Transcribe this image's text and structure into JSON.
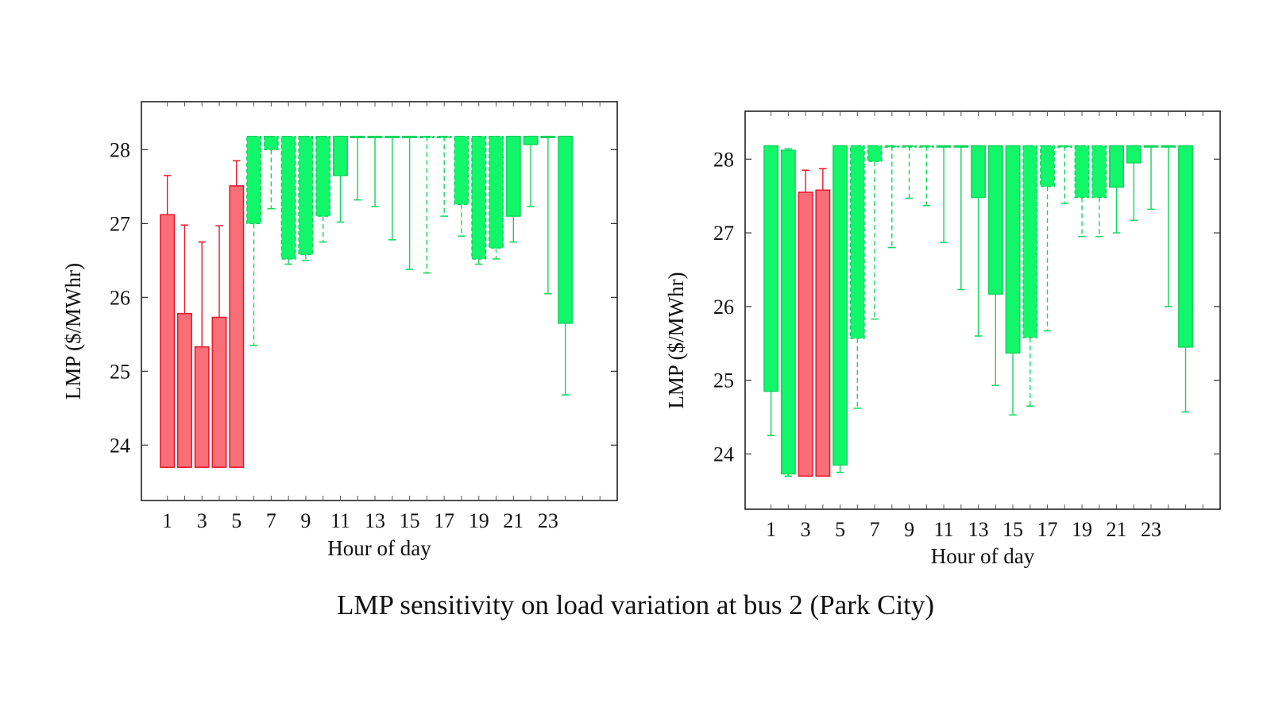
{
  "figure": {
    "caption": "LMP sensitivity on load variation at bus 2 (Park City)"
  },
  "colors": {
    "red_fill": "#f96f77",
    "red_stroke": "#e8162c",
    "green_fill": "#12f76a",
    "green_stroke": "#10d65c",
    "frame": "#222222"
  },
  "chart_data": [
    {
      "type": "bar",
      "subtype": "floating-bar-with-whiskers",
      "xlabel": "Hour of day",
      "ylabel": "LMP ($/MWhr)",
      "ylim": [
        23.25,
        28.65
      ],
      "yticks": [
        24,
        25,
        26,
        27,
        28
      ],
      "xticks": [
        1,
        3,
        5,
        7,
        9,
        11,
        13,
        15,
        17,
        19,
        21,
        23
      ],
      "xlim": [
        -0.5,
        27
      ],
      "grid": false,
      "cap": 28.18,
      "bars": [
        {
          "hour": 1,
          "low": 23.7,
          "high": 27.12,
          "whisker_low": 23.7,
          "whisker_high": 27.65,
          "color": "red",
          "style": "solid"
        },
        {
          "hour": 2,
          "low": 23.7,
          "high": 25.78,
          "whisker_low": 23.7,
          "whisker_high": 26.98,
          "color": "red",
          "style": "solid"
        },
        {
          "hour": 3,
          "low": 23.7,
          "high": 25.33,
          "whisker_low": 23.7,
          "whisker_high": 26.75,
          "color": "red",
          "style": "solid"
        },
        {
          "hour": 4,
          "low": 23.7,
          "high": 25.73,
          "whisker_low": 23.7,
          "whisker_high": 26.97,
          "color": "red",
          "style": "solid"
        },
        {
          "hour": 5,
          "low": 23.7,
          "high": 27.51,
          "whisker_low": 23.7,
          "whisker_high": 27.85,
          "color": "red",
          "style": "solid"
        },
        {
          "hour": 6,
          "low": 27.0,
          "high": 28.18,
          "whisker_low": 25.35,
          "whisker_high": 28.18,
          "color": "green",
          "style": "dashed"
        },
        {
          "hour": 7,
          "low": 28.0,
          "high": 28.18,
          "whisker_low": 27.2,
          "whisker_high": 28.18,
          "color": "green",
          "style": "dashed"
        },
        {
          "hour": 8,
          "low": 26.52,
          "high": 28.18,
          "whisker_low": 26.45,
          "whisker_high": 28.18,
          "color": "green",
          "style": "dashed"
        },
        {
          "hour": 9,
          "low": 26.58,
          "high": 28.18,
          "whisker_low": 26.5,
          "whisker_high": 28.18,
          "color": "green",
          "style": "dashed"
        },
        {
          "hour": 10,
          "low": 27.1,
          "high": 28.18,
          "whisker_low": 26.75,
          "whisker_high": 28.18,
          "color": "green",
          "style": "dashed"
        },
        {
          "hour": 11,
          "low": 27.65,
          "high": 28.18,
          "whisker_low": 27.02,
          "whisker_high": 28.18,
          "color": "green",
          "style": "solid"
        },
        {
          "hour": 12,
          "low": 28.18,
          "high": 28.18,
          "whisker_low": 27.32,
          "whisker_high": 28.18,
          "color": "green",
          "style": "solid"
        },
        {
          "hour": 13,
          "low": 28.18,
          "high": 28.18,
          "whisker_low": 27.23,
          "whisker_high": 28.18,
          "color": "green",
          "style": "solid"
        },
        {
          "hour": 14,
          "low": 28.18,
          "high": 28.18,
          "whisker_low": 26.78,
          "whisker_high": 28.18,
          "color": "green",
          "style": "solid"
        },
        {
          "hour": 15,
          "low": 28.18,
          "high": 28.18,
          "whisker_low": 26.38,
          "whisker_high": 28.18,
          "color": "green",
          "style": "solid"
        },
        {
          "hour": 16,
          "low": 28.18,
          "high": 28.18,
          "whisker_low": 26.33,
          "whisker_high": 28.18,
          "color": "green",
          "style": "dashed"
        },
        {
          "hour": 17,
          "low": 28.18,
          "high": 28.18,
          "whisker_low": 27.1,
          "whisker_high": 28.18,
          "color": "green",
          "style": "dashed"
        },
        {
          "hour": 18,
          "low": 27.26,
          "high": 28.18,
          "whisker_low": 26.83,
          "whisker_high": 28.18,
          "color": "green",
          "style": "dashed"
        },
        {
          "hour": 19,
          "low": 26.52,
          "high": 28.18,
          "whisker_low": 26.45,
          "whisker_high": 28.18,
          "color": "green",
          "style": "dashed"
        },
        {
          "hour": 20,
          "low": 26.67,
          "high": 28.18,
          "whisker_low": 26.52,
          "whisker_high": 28.18,
          "color": "green",
          "style": "dashed"
        },
        {
          "hour": 21,
          "low": 27.1,
          "high": 28.18,
          "whisker_low": 26.75,
          "whisker_high": 28.18,
          "color": "green",
          "style": "solid"
        },
        {
          "hour": 22,
          "low": 28.07,
          "high": 28.18,
          "whisker_low": 27.23,
          "whisker_high": 28.18,
          "color": "green",
          "style": "solid"
        },
        {
          "hour": 23,
          "low": 28.18,
          "high": 28.18,
          "whisker_low": 26.05,
          "whisker_high": 28.18,
          "color": "green",
          "style": "solid"
        },
        {
          "hour": 24,
          "low": 25.65,
          "high": 28.18,
          "whisker_low": 24.68,
          "whisker_high": 28.18,
          "color": "green",
          "style": "solid"
        }
      ]
    },
    {
      "type": "bar",
      "subtype": "floating-bar-with-whiskers",
      "xlabel": "Hour of day",
      "ylabel": "LMP ($/MWhr)",
      "ylim": [
        23.25,
        28.65
      ],
      "yticks": [
        24,
        25,
        26,
        27,
        28
      ],
      "xticks": [
        1,
        3,
        5,
        7,
        9,
        11,
        13,
        15,
        17,
        19,
        21,
        23
      ],
      "xlim": [
        -0.5,
        27
      ],
      "grid": false,
      "cap": 28.18,
      "bars": [
        {
          "hour": 1,
          "low": 24.85,
          "high": 28.18,
          "whisker_low": 24.25,
          "whisker_high": 28.18,
          "color": "green",
          "style": "solid"
        },
        {
          "hour": 2,
          "low": 23.73,
          "high": 28.12,
          "whisker_low": 23.7,
          "whisker_high": 28.14,
          "color": "green",
          "style": "solid"
        },
        {
          "hour": 3,
          "low": 23.7,
          "high": 27.55,
          "whisker_low": 23.7,
          "whisker_high": 27.85,
          "color": "red",
          "style": "solid"
        },
        {
          "hour": 4,
          "low": 23.7,
          "high": 27.58,
          "whisker_low": 23.7,
          "whisker_high": 27.87,
          "color": "red",
          "style": "solid"
        },
        {
          "hour": 5,
          "low": 23.85,
          "high": 28.18,
          "whisker_low": 23.75,
          "whisker_high": 28.18,
          "color": "green",
          "style": "solid"
        },
        {
          "hour": 6,
          "low": 25.57,
          "high": 28.18,
          "whisker_low": 24.62,
          "whisker_high": 28.18,
          "color": "green",
          "style": "dashed"
        },
        {
          "hour": 7,
          "low": 27.97,
          "high": 28.18,
          "whisker_low": 25.83,
          "whisker_high": 28.18,
          "color": "green",
          "style": "dashed"
        },
        {
          "hour": 8,
          "low": 28.18,
          "high": 28.18,
          "whisker_low": 26.8,
          "whisker_high": 28.18,
          "color": "green",
          "style": "dashed"
        },
        {
          "hour": 9,
          "low": 28.18,
          "high": 28.18,
          "whisker_low": 27.47,
          "whisker_high": 28.18,
          "color": "green",
          "style": "dashed"
        },
        {
          "hour": 10,
          "low": 28.18,
          "high": 28.18,
          "whisker_low": 27.37,
          "whisker_high": 28.18,
          "color": "green",
          "style": "dashed"
        },
        {
          "hour": 11,
          "low": 28.18,
          "high": 28.18,
          "whisker_low": 26.87,
          "whisker_high": 28.18,
          "color": "green",
          "style": "solid"
        },
        {
          "hour": 12,
          "low": 28.18,
          "high": 28.18,
          "whisker_low": 26.23,
          "whisker_high": 28.18,
          "color": "green",
          "style": "solid"
        },
        {
          "hour": 13,
          "low": 27.48,
          "high": 28.18,
          "whisker_low": 25.6,
          "whisker_high": 28.18,
          "color": "green",
          "style": "solid"
        },
        {
          "hour": 14,
          "low": 26.17,
          "high": 28.18,
          "whisker_low": 24.93,
          "whisker_high": 28.18,
          "color": "green",
          "style": "solid"
        },
        {
          "hour": 15,
          "low": 25.37,
          "high": 28.18,
          "whisker_low": 24.53,
          "whisker_high": 28.18,
          "color": "green",
          "style": "solid"
        },
        {
          "hour": 16,
          "low": 25.58,
          "high": 28.18,
          "whisker_low": 24.65,
          "whisker_high": 28.18,
          "color": "green",
          "style": "dashed"
        },
        {
          "hour": 17,
          "low": 27.63,
          "high": 28.18,
          "whisker_low": 25.67,
          "whisker_high": 28.18,
          "color": "green",
          "style": "dashed"
        },
        {
          "hour": 18,
          "low": 28.18,
          "high": 28.18,
          "whisker_low": 27.4,
          "whisker_high": 28.18,
          "color": "green",
          "style": "dashed"
        },
        {
          "hour": 19,
          "low": 27.48,
          "high": 28.18,
          "whisker_low": 26.95,
          "whisker_high": 28.18,
          "color": "green",
          "style": "dashed"
        },
        {
          "hour": 20,
          "low": 27.48,
          "high": 28.18,
          "whisker_low": 26.95,
          "whisker_high": 28.18,
          "color": "green",
          "style": "dashed"
        },
        {
          "hour": 21,
          "low": 27.62,
          "high": 28.18,
          "whisker_low": 27.0,
          "whisker_high": 28.18,
          "color": "green",
          "style": "solid"
        },
        {
          "hour": 22,
          "low": 27.95,
          "high": 28.18,
          "whisker_low": 27.17,
          "whisker_high": 28.18,
          "color": "green",
          "style": "solid"
        },
        {
          "hour": 23,
          "low": 28.18,
          "high": 28.18,
          "whisker_low": 27.32,
          "whisker_high": 28.18,
          "color": "green",
          "style": "solid"
        },
        {
          "hour": 24,
          "low": 28.18,
          "high": 28.18,
          "whisker_low": 26.0,
          "whisker_high": 28.18,
          "color": "green",
          "style": "solid"
        },
        {
          "hour": 25,
          "low": 25.45,
          "high": 28.18,
          "whisker_low": 24.57,
          "whisker_high": 28.18,
          "color": "green",
          "style": "solid"
        }
      ]
    }
  ]
}
